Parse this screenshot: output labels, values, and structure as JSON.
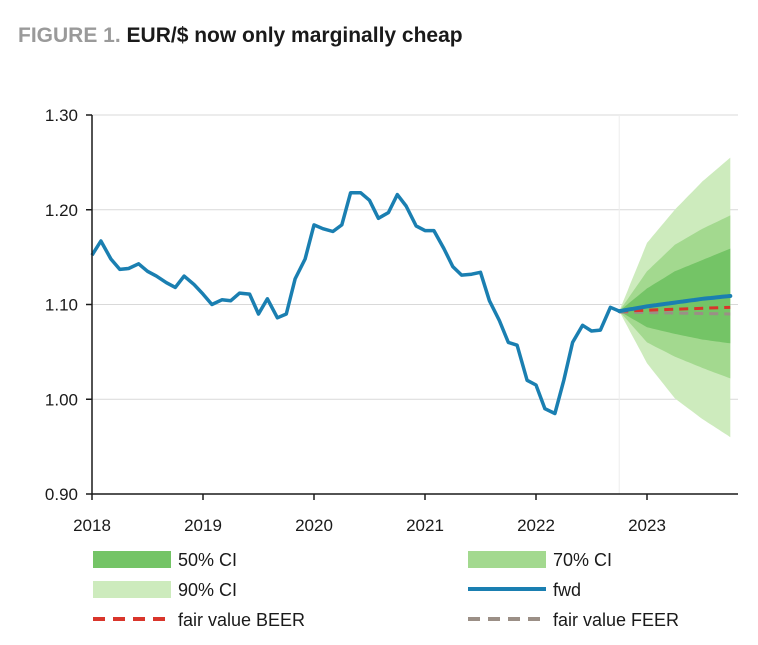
{
  "title": {
    "prefix": "FIGURE 1.",
    "text": "EUR/$ now only marginally cheap"
  },
  "colors": {
    "ci50": "#74c466",
    "ci70": "#a3d98f",
    "ci90": "#cdebbd",
    "fwd": "#1a7fb1",
    "beer": "#d9352b",
    "feer": "#9b8f86",
    "axis": "#1a1a1a",
    "grid": "#d9d9d9"
  },
  "chart_data": {
    "type": "line",
    "title": "EUR/$ now only marginally cheap",
    "xlabel": "",
    "ylabel": "",
    "xlim": [
      2018.0,
      2023.82
    ],
    "ylim": [
      0.9,
      1.3
    ],
    "y_ticks": [
      "1.30",
      "1.20",
      "1.10",
      "1.00",
      "0.90"
    ],
    "x_ticks": [
      "2018",
      "2019",
      "2020",
      "2021",
      "2022",
      "2023"
    ],
    "grid": "horizontal",
    "legend": {
      "placement": "bottom",
      "items": [
        {
          "label": "50% CI",
          "kind": "patch",
          "color_key": "ci50"
        },
        {
          "label": "70% CI",
          "kind": "patch",
          "color_key": "ci70"
        },
        {
          "label": "90% CI",
          "kind": "patch",
          "color_key": "ci90"
        },
        {
          "label": "fwd",
          "kind": "line",
          "color_key": "fwd"
        },
        {
          "label": "fair value BEER",
          "kind": "dash",
          "color_key": "beer"
        },
        {
          "label": "fair value FEER",
          "kind": "dash",
          "color_key": "feer"
        }
      ]
    },
    "spot": {
      "name": "EUR/$",
      "x": [
        2018.0,
        2018.08,
        2018.17,
        2018.25,
        2018.33,
        2018.42,
        2018.5,
        2018.58,
        2018.67,
        2018.75,
        2018.83,
        2018.92,
        2019.0,
        2019.08,
        2019.17,
        2019.25,
        2019.33,
        2019.42,
        2019.5,
        2019.58,
        2019.67,
        2019.75,
        2019.83,
        2019.92,
        2020.0,
        2020.08,
        2020.17,
        2020.25,
        2020.33,
        2020.42,
        2020.5,
        2020.58,
        2020.67,
        2020.75,
        2020.83,
        2020.92,
        2021.0,
        2021.08,
        2021.17,
        2021.25,
        2021.33,
        2021.42,
        2021.5,
        2021.58,
        2021.67,
        2021.75,
        2021.83,
        2021.92,
        2022.0,
        2022.08,
        2022.17,
        2022.25,
        2022.33,
        2022.42,
        2022.5,
        2022.58,
        2022.67,
        2022.75
      ],
      "values": [
        1.152,
        1.167,
        1.148,
        1.137,
        1.138,
        1.143,
        1.135,
        1.13,
        1.123,
        1.118,
        1.13,
        1.121,
        1.111,
        1.1,
        1.105,
        1.104,
        1.112,
        1.111,
        1.09,
        1.106,
        1.086,
        1.09,
        1.127,
        1.148,
        1.184,
        1.18,
        1.177,
        1.184,
        1.218,
        1.218,
        1.21,
        1.191,
        1.197,
        1.216,
        1.204,
        1.183,
        1.178,
        1.178,
        1.159,
        1.14,
        1.131,
        1.132,
        1.134,
        1.104,
        1.083,
        1.06,
        1.057,
        1.02,
        1.015,
        0.99,
        0.985,
        1.02,
        1.06,
        1.078,
        1.072,
        1.073,
        1.097,
        1.093
      ]
    },
    "forecast": {
      "x": [
        2022.75,
        2023.0,
        2023.25,
        2023.5,
        2023.75
      ],
      "fwd": [
        1.093,
        1.098,
        1.102,
        1.106,
        1.109
      ],
      "ci50_lower": [
        1.093,
        1.076,
        1.069,
        1.063,
        1.059
      ],
      "ci50_upper": [
        1.093,
        1.117,
        1.135,
        1.147,
        1.159
      ],
      "ci70_lower": [
        1.093,
        1.06,
        1.045,
        1.033,
        1.022
      ],
      "ci70_upper": [
        1.093,
        1.135,
        1.163,
        1.18,
        1.194
      ],
      "ci90_lower": [
        1.093,
        1.038,
        1.001,
        0.979,
        0.96
      ],
      "ci90_upper": [
        1.093,
        1.165,
        1.2,
        1.23,
        1.255
      ]
    },
    "fair_value_beer": {
      "x": [
        2022.75,
        2023.75
      ],
      "values": [
        1.093,
        1.097
      ]
    },
    "fair_value_feer": {
      "x": [
        2022.75,
        2023.75
      ],
      "values": [
        1.092,
        1.09
      ]
    }
  }
}
